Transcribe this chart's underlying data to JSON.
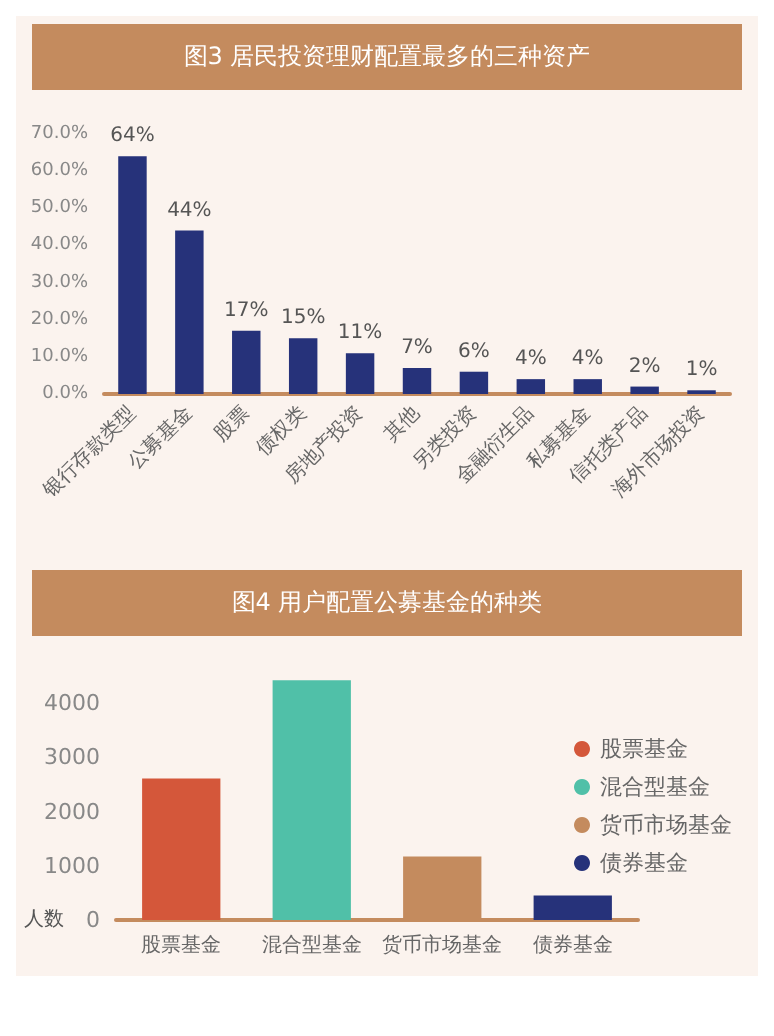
{
  "chart_data": [
    {
      "type": "bar",
      "title": "图3 居民投资理财配置最多的三种资产",
      "categories": [
        "银行存款类型",
        "公募基金",
        "股票",
        "债权类",
        "房地产投资",
        "其他",
        "另类投资",
        "金融衍生品",
        "私募基金",
        "信托类产品",
        "海外市场投资"
      ],
      "values": [
        64,
        44,
        17,
        15,
        11,
        7,
        6,
        4,
        4,
        2,
        1
      ],
      "value_labels": [
        "64%",
        "44%",
        "17%",
        "15%",
        "11%",
        "7%",
        "6%",
        "4%",
        "4%",
        "2%",
        "1%"
      ],
      "color": "#26327a",
      "ylim": [
        0,
        70
      ],
      "yticks": [
        {
          "value": 0,
          "label": "0.0%"
        },
        {
          "value": 10,
          "label": "10.0%"
        },
        {
          "value": 20,
          "label": "20.0%"
        },
        {
          "value": 30,
          "label": "30.0%"
        },
        {
          "value": 40,
          "label": "40.0%"
        },
        {
          "value": 50,
          "label": "50.0%"
        },
        {
          "value": 60,
          "label": "60.0%"
        },
        {
          "value": 70,
          "label": "70.0%"
        }
      ],
      "grid": false,
      "legend": false
    },
    {
      "type": "bar",
      "title": "图4 用户配置公募基金的种类",
      "ylabel": "人数",
      "categories": [
        "股票基金",
        "混合型基金",
        "货币市场基金",
        "债券基金"
      ],
      "series": [
        {
          "name": "股票基金",
          "color": "#d4573a",
          "values": [
            2610,
            null,
            null,
            null
          ]
        },
        {
          "name": "混合型基金",
          "color": "#50c0a8",
          "values": [
            null,
            4420,
            null,
            null
          ]
        },
        {
          "name": "货币市场基金",
          "color": "#c48b5e",
          "values": [
            null,
            null,
            1170,
            null
          ]
        },
        {
          "name": "债券基金",
          "color": "#26327a",
          "values": [
            null,
            null,
            null,
            450
          ]
        }
      ],
      "ylim": [
        0,
        4500
      ],
      "yticks": [
        0,
        1000,
        2000,
        3000,
        4000
      ],
      "grid": false,
      "legend": "right"
    }
  ]
}
